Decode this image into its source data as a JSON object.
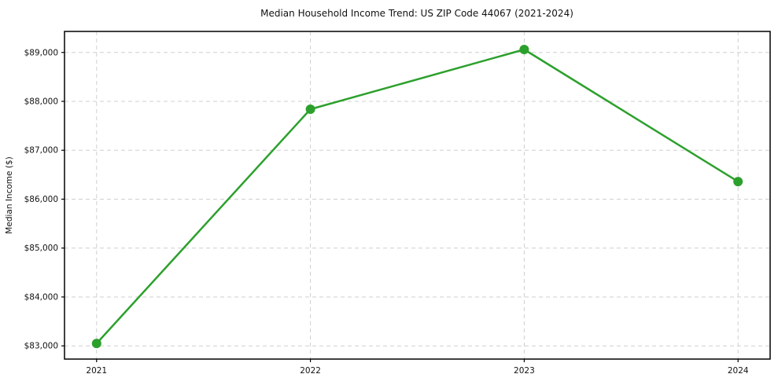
{
  "chart_data": {
    "type": "line",
    "title": "Median Household Income Trend: US ZIP Code 44067 (2021-2024)",
    "xlabel": "",
    "ylabel": "Median Income ($)",
    "x": [
      2021,
      2022,
      2023,
      2024
    ],
    "series": [
      {
        "name": "Median Household Income",
        "values": [
          83050,
          87840,
          89060,
          86360
        ]
      }
    ],
    "xticks": [
      2021,
      2022,
      2023,
      2024
    ],
    "xtick_labels": [
      "2021",
      "2022",
      "2023",
      "2024"
    ],
    "yticks": [
      83000,
      84000,
      85000,
      86000,
      87000,
      88000,
      89000
    ],
    "ytick_labels": [
      "$83,000",
      "$84,000",
      "$85,000",
      "$86,000",
      "$87,000",
      "$88,000",
      "$89,000"
    ],
    "xlim": [
      2020.85,
      2024.15
    ],
    "ylim": [
      82730,
      89430
    ],
    "grid": true,
    "grid_style": "dashed",
    "legend": "none",
    "colors": {
      "line": "#2ca02c",
      "marker": "#2ca02c",
      "grid": "#cfcfcf",
      "spine": "#000000",
      "text": "#111111",
      "background": "#ffffff"
    },
    "marker": "o",
    "marker_radius": 6,
    "line_width": 2.5
  }
}
